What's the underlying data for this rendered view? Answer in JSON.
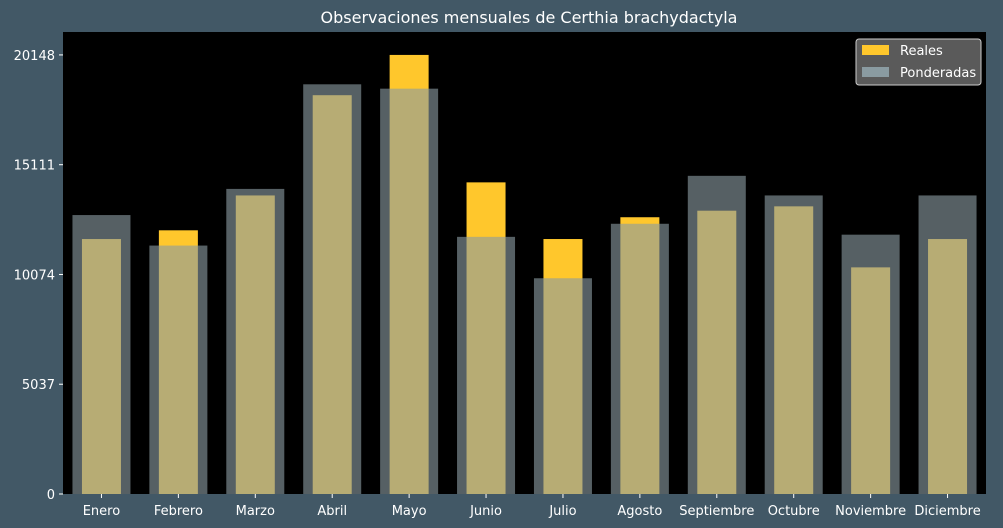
{
  "chart_data": {
    "type": "bar",
    "title": "Observaciones mensuales de Certhia brachydactyla",
    "xlabel": "",
    "ylabel": "",
    "categories": [
      "Enero",
      "Febrero",
      "Marzo",
      "Abril",
      "Mayo",
      "Junio",
      "Julio",
      "Agosto",
      "Septiembre",
      "Octubre",
      "Noviembre",
      "Diciembre"
    ],
    "series": [
      {
        "name": "Reales",
        "color": "#ffc72c",
        "values": [
          11700,
          12100,
          13700,
          18300,
          20148,
          14300,
          11700,
          12700,
          13000,
          13200,
          10400,
          11700
        ]
      },
      {
        "name": "Ponderadas",
        "color": "#8a9ba1",
        "values": [
          12800,
          11400,
          14000,
          18800,
          18600,
          11800,
          9900,
          12400,
          14600,
          13700,
          11900,
          13700
        ]
      }
    ],
    "yticks": [
      0,
      5037,
      10074,
      15111,
      20148
    ],
    "ylim": [
      0,
      21200
    ],
    "grid": false,
    "legend_position": "top-right",
    "background": "#000000",
    "figure_background": "#425866"
  }
}
